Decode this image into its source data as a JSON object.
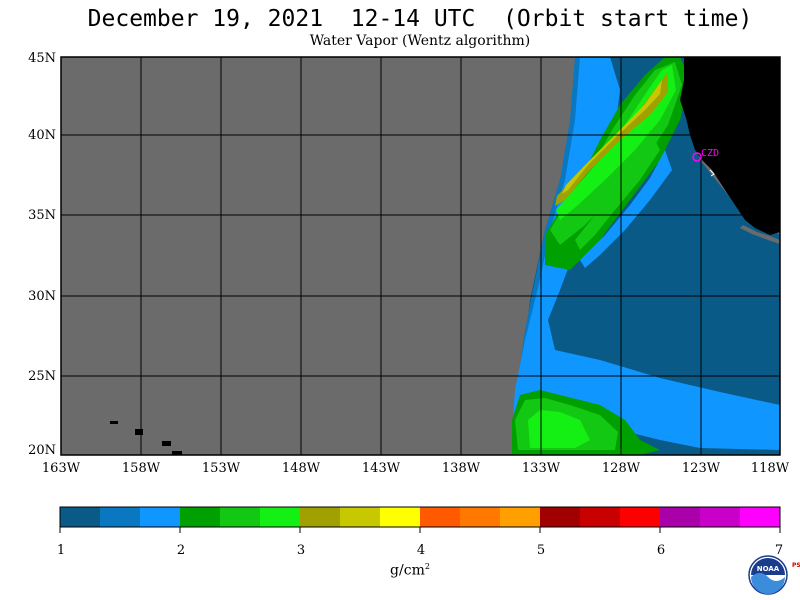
{
  "title": "December 19, 2021  12-14 UTC  (Orbit start time)",
  "subtitle": "Water Vapor (Wentz algorithm)",
  "station_label": "CZD",
  "lat_ticks": [
    "45N",
    "40N",
    "35N",
    "30N",
    "25N",
    "20N"
  ],
  "lon_ticks": [
    "163W",
    "158W",
    "153W",
    "148W",
    "143W",
    "138W",
    "133W",
    "128W",
    "123W",
    "118W"
  ],
  "colorbar": {
    "ticks": [
      "1",
      "2",
      "3",
      "4",
      "5",
      "6",
      "7"
    ],
    "units_text": "g/cm",
    "units_sup": "2",
    "colors": [
      "#0a5a87",
      "#0a78c0",
      "#0f96ff",
      "#00a000",
      "#12c812",
      "#14f014",
      "#a0a000",
      "#c8c800",
      "#ffff00",
      "#ff5a00",
      "#ff7800",
      "#ffa000",
      "#a00000",
      "#c80000",
      "#ff0000",
      "#aa00aa",
      "#c800c8",
      "#ff00ff"
    ]
  },
  "map_colors": {
    "no_data": "#6b6b6b",
    "land": "#000000",
    "station": "#ff00ff"
  },
  "logo": {
    "text": "NOAA",
    "side_text": "PSL"
  }
}
